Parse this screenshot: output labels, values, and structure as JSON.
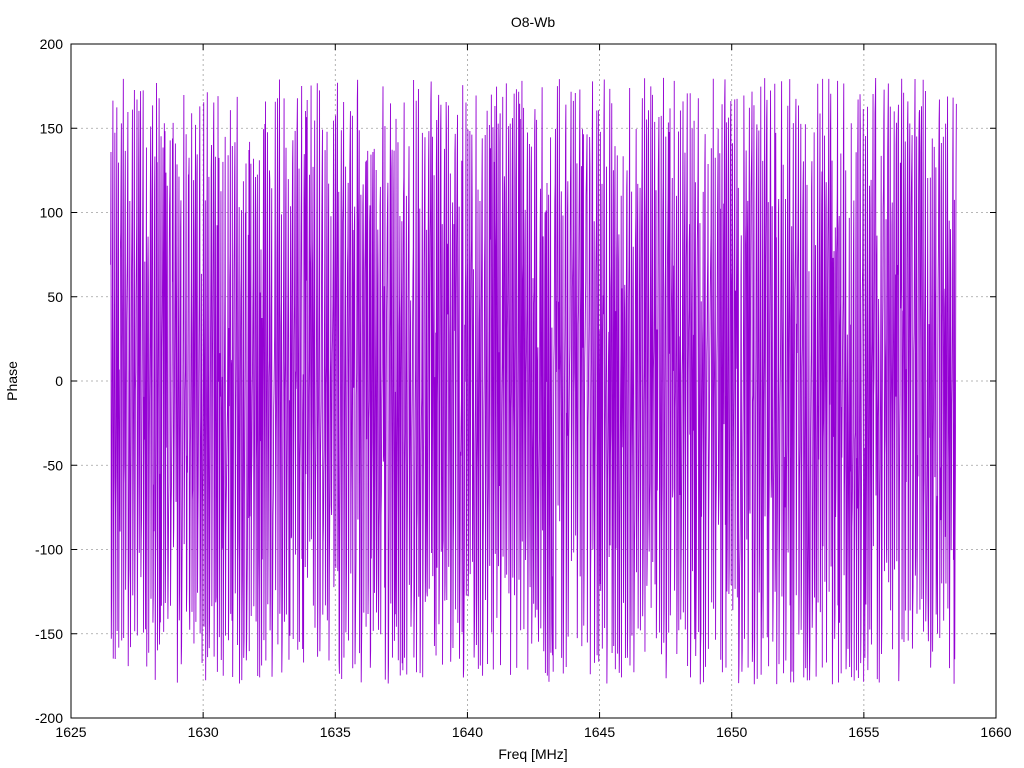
{
  "chart_data": {
    "type": "line",
    "title": "O8-Wb",
    "xlabel": "Freq [MHz]",
    "ylabel": "Phase",
    "xlim": [
      1625,
      1660
    ],
    "ylim": [
      -200,
      200
    ],
    "xticks": [
      1625,
      1630,
      1635,
      1640,
      1645,
      1650,
      1655,
      1660
    ],
    "yticks": [
      -200,
      -150,
      -100,
      -50,
      0,
      50,
      100,
      150,
      200
    ],
    "grid": true,
    "legend": "none",
    "series": [
      {
        "color": "#9400d3",
        "x_start": 1626.5,
        "x_end": 1658.5,
        "y_range": [
          -180,
          180
        ],
        "description_of_data": "dense wrapped phase trace oscillating across the full ±180 range"
      }
    ]
  }
}
